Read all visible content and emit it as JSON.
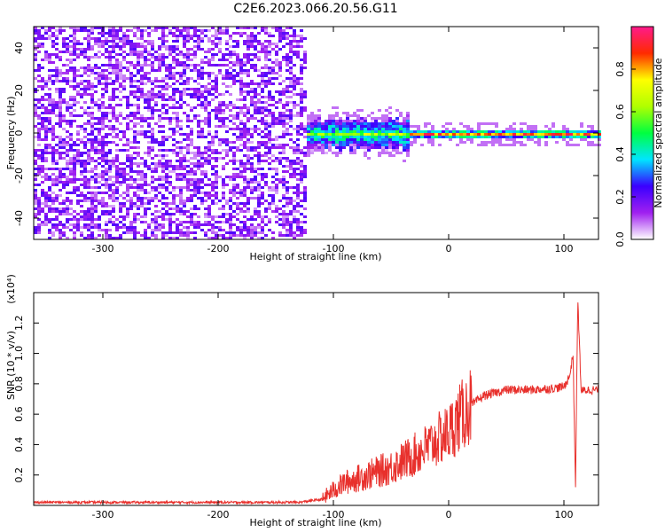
{
  "figure_title": "C2E6.2023.066.20.56.G11",
  "colors": {
    "snr_line": "#e8302c",
    "axis": "#000000",
    "colorbar": [
      "#ffffff",
      "#a020f0",
      "#3a00ff",
      "#00e5ff",
      "#00ff40",
      "#b0ff00",
      "#ffff00",
      "#ff2a00",
      "#ff1a8c"
    ]
  },
  "chart_data": [
    {
      "type": "heatmap",
      "xlabel": "Height of straight line (km)",
      "ylabel": "Frequency (Hz)",
      "xlim": [
        -360,
        130
      ],
      "ylim": [
        -50,
        50
      ],
      "xticks": [
        -300,
        -200,
        -100,
        0,
        100
      ],
      "xtick_labels": [
        "-300",
        "-200",
        "-100",
        "0",
        "100"
      ],
      "yticks": [
        -40,
        -20,
        0,
        20,
        40
      ],
      "ytick_labels": [
        "-40",
        "-20",
        "0",
        "20",
        "40"
      ],
      "colorbar": {
        "label": "Normalized spectral amplitude",
        "range": [
          0,
          1
        ],
        "ticks": [
          0.0,
          0.2,
          0.4,
          0.6,
          0.8
        ],
        "tick_labels": [
          "0.0",
          "0.2",
          "0.4",
          "0.6",
          "0.8"
        ]
      },
      "regions": {
        "noise_band_x": [
          -360,
          -125
        ],
        "signal_start_x": -125,
        "signal_center_frequency": 0,
        "strong_line_x": [
          -35,
          130
        ]
      }
    },
    {
      "type": "line",
      "xlabel": "Height of straight line (km)",
      "ylabel": "SNR (10 * v/v)",
      "y_multiplier": "(x10⁴)",
      "xlim": [
        -360,
        130
      ],
      "ylim": [
        0,
        1.4
      ],
      "xticks": [
        -300,
        -200,
        -100,
        0,
        100
      ],
      "xtick_labels": [
        "-300",
        "-200",
        "-100",
        "0",
        "100"
      ],
      "yticks": [
        0.2,
        0.4,
        0.6,
        0.8,
        1.0,
        1.2
      ],
      "ytick_labels": [
        "0.2",
        "0.4",
        "0.6",
        "0.8",
        "1.0",
        "1.2"
      ],
      "series": [
        {
          "x": [
            -360,
            -300,
            -200,
            -130,
            -110,
            -100,
            -90,
            -70,
            -50,
            -30,
            -15,
            0,
            10,
            20,
            30,
            50,
            70,
            90,
            100,
            105,
            108,
            110,
            112,
            115,
            120,
            130
          ],
          "y": [
            0.02,
            0.02,
            0.02,
            0.02,
            0.04,
            0.1,
            0.15,
            0.2,
            0.25,
            0.33,
            0.4,
            0.48,
            0.58,
            0.66,
            0.72,
            0.76,
            0.76,
            0.77,
            0.78,
            0.85,
            1.0,
            0.1,
            1.35,
            0.75,
            0.76,
            0.76
          ]
        }
      ]
    }
  ]
}
